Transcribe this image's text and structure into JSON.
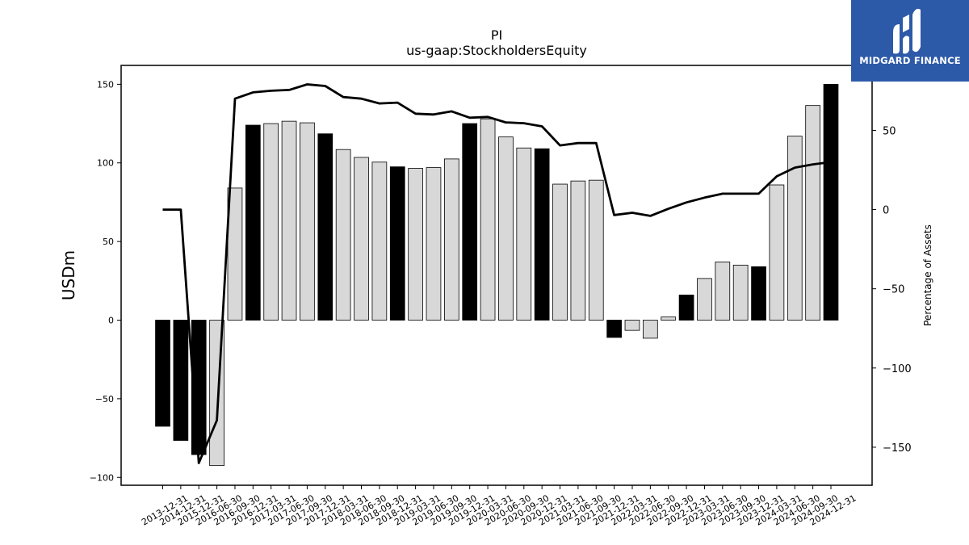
{
  "logo": {
    "text": "MIDGARD FINANCE"
  },
  "chart_data": {
    "type": "bar",
    "title": "PI",
    "subtitle": "us-gaap:StockholdersEquity",
    "ylabel": "USDm",
    "y2label": "Percentage of Assets",
    "ylim": [
      -105,
      162
    ],
    "y2lim": [
      -174,
      91
    ],
    "yticks": [
      -100,
      -50,
      0,
      50,
      100,
      150
    ],
    "y2ticks": [
      -150,
      -100,
      -50,
      0,
      50
    ],
    "categories": [
      "2013-12-31",
      "2014-12-31",
      "2015-12-31",
      "2016-06-30",
      "2016-09-30",
      "2016-12-31",
      "2017-03-31",
      "2017-06-30",
      "2017-09-30",
      "2017-12-31",
      "2018-03-31",
      "2018-06-30",
      "2018-09-30",
      "2018-12-31",
      "2019-03-31",
      "2019-06-30",
      "2019-09-30",
      "2019-12-31",
      "2020-03-31",
      "2020-06-30",
      "2020-09-30",
      "2020-12-31",
      "2021-03-31",
      "2021-06-30",
      "2021-09-30",
      "2021-12-31",
      "2022-03-31",
      "2022-06-30",
      "2022-09-30",
      "2022-12-31",
      "2023-03-31",
      "2023-06-30",
      "2023-09-30",
      "2023-12-31",
      "2024-03-31",
      "2024-06-30",
      "2024-09-30",
      "2024-12-31"
    ],
    "bars": {
      "name": "StockholdersEquity",
      "values": [
        -67.5,
        -76.5,
        -85.5,
        -92.5,
        84,
        124,
        125,
        126.5,
        125.5,
        118.5,
        108.5,
        103.5,
        100.5,
        97.5,
        96.5,
        97,
        102.5,
        125,
        128,
        116.5,
        109.5,
        109,
        86.5,
        88.5,
        89,
        -11,
        -6.5,
        -11.5,
        2,
        16,
        26.5,
        37,
        35,
        34,
        86,
        117,
        136.5,
        150
      ],
      "highlight": [
        true,
        true,
        true,
        false,
        false,
        true,
        false,
        false,
        false,
        true,
        false,
        false,
        false,
        true,
        false,
        false,
        false,
        true,
        false,
        false,
        false,
        true,
        false,
        false,
        false,
        true,
        false,
        false,
        false,
        true,
        false,
        false,
        false,
        true,
        false,
        false,
        false,
        true
      ],
      "color_highlight": "#000000",
      "color_normal": "#d8d8d8"
    },
    "line": {
      "name": "Percentage of Assets",
      "values": [
        0,
        0,
        -160,
        -133,
        70,
        74,
        75,
        75.5,
        79,
        78,
        71,
        70,
        67,
        67.5,
        60.5,
        60,
        62,
        58,
        58.5,
        55,
        54.5,
        52.5,
        40.5,
        42,
        42,
        -3.5,
        -2,
        -4,
        0.5,
        4.5,
        7.5,
        10,
        10,
        10,
        21,
        26.5,
        28.5,
        30
      ],
      "color": "#000000"
    },
    "grid": false
  }
}
